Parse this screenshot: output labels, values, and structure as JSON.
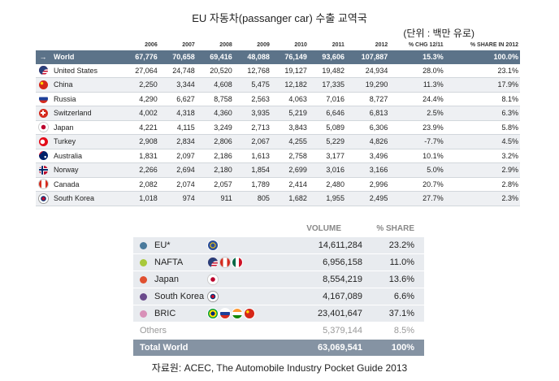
{
  "title": "EU 자동차(passanger car) 수출 교역국",
  "unit": "(단위 : 백만 유로)",
  "source": "자료원: ACEC, The Automobile Industry Pocket Guide 2013",
  "colors": {
    "header_bar": "#5c7389",
    "total_bar": "#8593a3",
    "row_shade": "#eef0f3"
  },
  "chart_data": [
    {
      "type": "table",
      "columns": [
        "2006",
        "2007",
        "2008",
        "2009",
        "2010",
        "2011",
        "2012",
        "% CHG 12/11",
        "% SHARE IN 2012"
      ],
      "rows": [
        {
          "name": "World",
          "icon": "arrow-icon",
          "values": [
            "67,776",
            "70,658",
            "69,416",
            "48,088",
            "76,149",
            "93,606",
            "107,887",
            "15.3%",
            "100.0%"
          ]
        },
        {
          "name": "United States",
          "icon": "us-flag-icon",
          "values": [
            "27,064",
            "24,748",
            "20,520",
            "12,768",
            "19,127",
            "19,482",
            "24,934",
            "28.0%",
            "23.1%"
          ]
        },
        {
          "name": "China",
          "icon": "china-flag-icon",
          "values": [
            "2,250",
            "3,344",
            "4,608",
            "5,475",
            "12,182",
            "17,335",
            "19,290",
            "11.3%",
            "17.9%"
          ]
        },
        {
          "name": "Russia",
          "icon": "russia-flag-icon",
          "values": [
            "4,290",
            "6,627",
            "8,758",
            "2,563",
            "4,063",
            "7,016",
            "8,727",
            "24.4%",
            "8.1%"
          ]
        },
        {
          "name": "Switzerland",
          "icon": "switzerland-flag-icon",
          "values": [
            "4,002",
            "4,318",
            "4,360",
            "3,935",
            "5,219",
            "6,646",
            "6,813",
            "2.5%",
            "6.3%"
          ]
        },
        {
          "name": "Japan",
          "icon": "japan-flag-icon",
          "values": [
            "4,221",
            "4,115",
            "3,249",
            "2,713",
            "3,843",
            "5,089",
            "6,306",
            "23.9%",
            "5.8%"
          ]
        },
        {
          "name": "Turkey",
          "icon": "turkey-flag-icon",
          "values": [
            "2,908",
            "2,834",
            "2,806",
            "2,067",
            "4,255",
            "5,229",
            "4,826",
            "-7.7%",
            "4.5%"
          ]
        },
        {
          "name": "Australia",
          "icon": "australia-flag-icon",
          "values": [
            "1,831",
            "2,097",
            "2,186",
            "1,613",
            "2,758",
            "3,177",
            "3,496",
            "10.1%",
            "3.2%"
          ]
        },
        {
          "name": "Norway",
          "icon": "norway-flag-icon",
          "values": [
            "2,266",
            "2,694",
            "2,180",
            "1,854",
            "2,699",
            "3,016",
            "3,166",
            "5.0%",
            "2.9%"
          ]
        },
        {
          "name": "Canada",
          "icon": "canada-flag-icon",
          "values": [
            "2,082",
            "2,074",
            "2,057",
            "1,789",
            "2,414",
            "2,480",
            "2,996",
            "20.7%",
            "2.8%"
          ]
        },
        {
          "name": "South Korea",
          "icon": "south-korea-flag-icon",
          "values": [
            "1,018",
            "974",
            "911",
            "805",
            "1,682",
            "1,955",
            "2,495",
            "27.7%",
            "2.3%"
          ]
        }
      ]
    },
    {
      "type": "table",
      "columns": [
        "VOLUME",
        "% SHARE"
      ],
      "rows": [
        {
          "name": "EU*",
          "dot": "#4a7a9c",
          "flags": [
            "eu-flag-icon"
          ],
          "volume": "14,611,284",
          "share": "23.2%"
        },
        {
          "name": "NAFTA",
          "dot": "#a8c83a",
          "flags": [
            "us-flag-icon",
            "canada-flag-icon",
            "mexico-flag-icon"
          ],
          "volume": "6,956,158",
          "share": "11.0%"
        },
        {
          "name": "Japan",
          "dot": "#e05030",
          "flags": [
            "japan-flag-icon"
          ],
          "volume": "8,554,219",
          "share": "13.6%"
        },
        {
          "name": "South Korea",
          "dot": "#6a4a8c",
          "flags": [
            "south-korea-flag-icon"
          ],
          "volume": "4,167,089",
          "share": "6.6%"
        },
        {
          "name": "BRIC",
          "dot": "#d890b8",
          "flags": [
            "brazil-flag-icon",
            "russia-flag-icon",
            "india-flag-icon",
            "china-flag-icon"
          ],
          "volume": "23,401,647",
          "share": "37.1%"
        }
      ],
      "others": {
        "name": "Others",
        "volume": "5,379,144",
        "share": "8.5%"
      },
      "total": {
        "name": "Total World",
        "volume": "63,069,541",
        "share": "100%"
      }
    }
  ]
}
